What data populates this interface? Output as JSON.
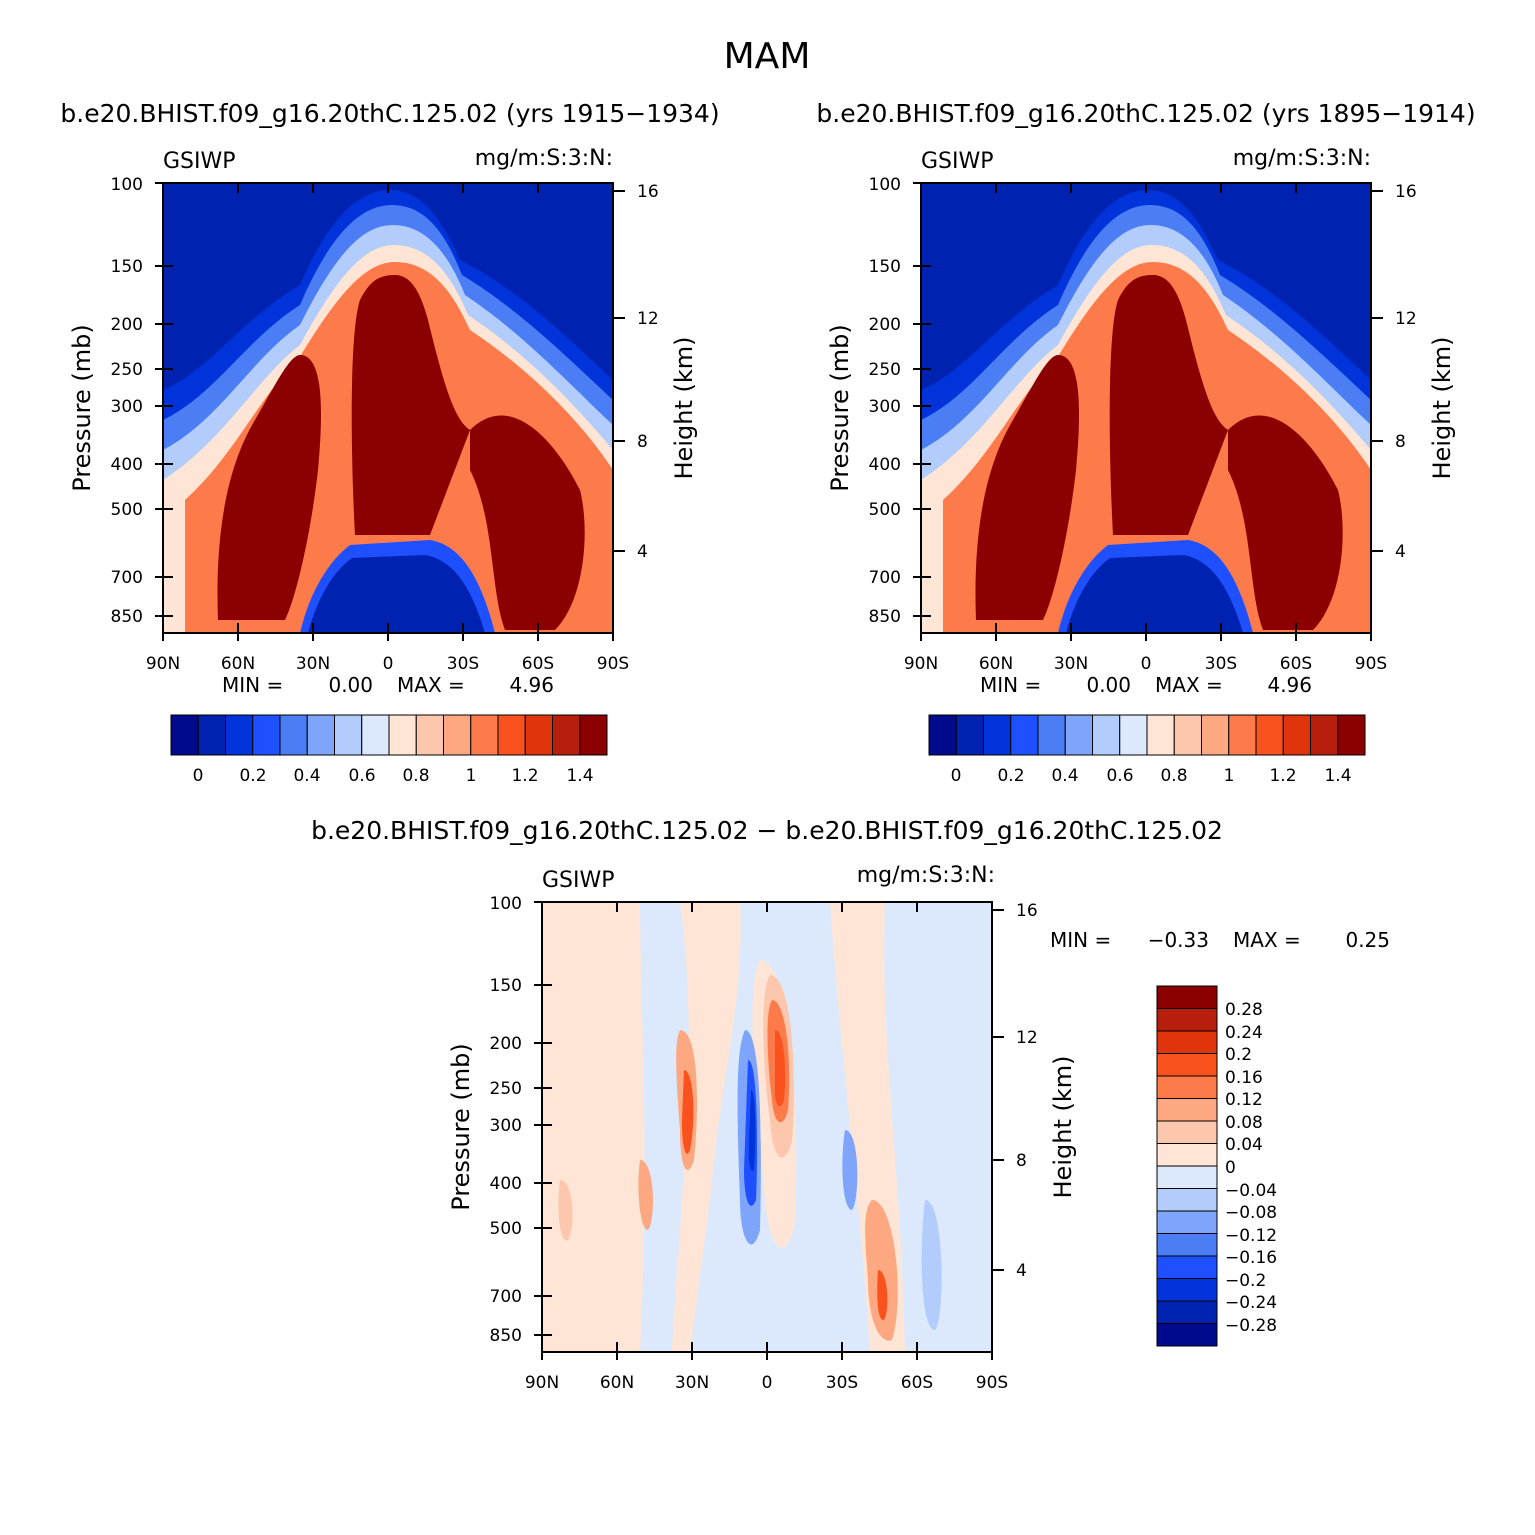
{
  "figure_title": "MAM",
  "chart_data": [
    {
      "type": "heatmap",
      "title": "b.e20.BHIST.f09_g16.20thC.125.02 (yrs 1915−1934)",
      "left_label": "GSIWP",
      "right_label": "mg/m:S:3:N:",
      "ylabel": "Pressure (mb)",
      "y2label": "Height (km)",
      "x_ticks": [
        "90N",
        "60N",
        "30N",
        "0",
        "30S",
        "60S",
        "90S"
      ],
      "x_range": [
        90,
        -90
      ],
      "y_ticks": [
        "100",
        "150",
        "200",
        "250",
        "300",
        "400",
        "500",
        "700",
        "850"
      ],
      "y_tick_values": [
        100,
        150,
        200,
        250,
        300,
        400,
        500,
        700,
        850
      ],
      "y_range": [
        100,
        1000
      ],
      "y2_ticks": [
        "16",
        "12",
        "8",
        "4"
      ],
      "y2_tick_values": [
        16,
        12,
        8,
        4
      ],
      "min_label": "MIN =",
      "min_value": "0.00",
      "max_label": "MAX =",
      "max_value": "4.96",
      "colorbar_labels": [
        "0",
        "0.2",
        "0.4",
        "0.6",
        "0.8",
        "1",
        "1.2",
        "1.4"
      ],
      "colorbar_levels": [
        0,
        0.1,
        0.2,
        0.3,
        0.4,
        0.5,
        0.6,
        0.7,
        0.8,
        0.9,
        1.0,
        1.1,
        1.2,
        1.3,
        1.4
      ]
    },
    {
      "type": "heatmap",
      "title": "b.e20.BHIST.f09_g16.20thC.125.02 (yrs 1895−1914)",
      "left_label": "GSIWP",
      "right_label": "mg/m:S:3:N:",
      "ylabel": "Pressure (mb)",
      "y2label": "Height (km)",
      "x_ticks": [
        "90N",
        "60N",
        "30N",
        "0",
        "30S",
        "60S",
        "90S"
      ],
      "x_range": [
        90,
        -90
      ],
      "y_ticks": [
        "100",
        "150",
        "200",
        "250",
        "300",
        "400",
        "500",
        "700",
        "850"
      ],
      "y_tick_values": [
        100,
        150,
        200,
        250,
        300,
        400,
        500,
        700,
        850
      ],
      "y_range": [
        100,
        1000
      ],
      "y2_ticks": [
        "16",
        "12",
        "8",
        "4"
      ],
      "y2_tick_values": [
        16,
        12,
        8,
        4
      ],
      "min_label": "MIN =",
      "min_value": "0.00",
      "max_label": "MAX =",
      "max_value": "4.96",
      "colorbar_labels": [
        "0",
        "0.2",
        "0.4",
        "0.6",
        "0.8",
        "1",
        "1.2",
        "1.4"
      ],
      "colorbar_levels": [
        0,
        0.1,
        0.2,
        0.3,
        0.4,
        0.5,
        0.6,
        0.7,
        0.8,
        0.9,
        1.0,
        1.1,
        1.2,
        1.3,
        1.4
      ]
    },
    {
      "type": "heatmap",
      "title": "b.e20.BHIST.f09_g16.20thC.125.02 − b.e20.BHIST.f09_g16.20thC.125.02",
      "left_label": "GSIWP",
      "right_label": "mg/m:S:3:N:",
      "ylabel": "Pressure (mb)",
      "y2label": "Height (km)",
      "x_ticks": [
        "90N",
        "60N",
        "30N",
        "0",
        "30S",
        "60S",
        "90S"
      ],
      "x_range": [
        90,
        -90
      ],
      "y_ticks": [
        "100",
        "150",
        "200",
        "250",
        "300",
        "400",
        "500",
        "700",
        "850"
      ],
      "y_tick_values": [
        100,
        150,
        200,
        250,
        300,
        400,
        500,
        700,
        850
      ],
      "y_range": [
        100,
        1000
      ],
      "y2_ticks": [
        "16",
        "12",
        "8",
        "4"
      ],
      "y2_tick_values": [
        16,
        12,
        8,
        4
      ],
      "min_label": "MIN =",
      "min_value": "−0.33",
      "max_label": "MAX =",
      "max_value": "0.25",
      "colorbar_labels": [
        "0.28",
        "0.24",
        "0.2",
        "0.16",
        "0.12",
        "0.08",
        "0.04",
        "0",
        "−0.04",
        "−0.08",
        "−0.12",
        "−0.16",
        "−0.2",
        "−0.24",
        "−0.28"
      ],
      "colorbar_levels": [
        0.28,
        0.24,
        0.2,
        0.16,
        0.12,
        0.08,
        0.04,
        0,
        -0.04,
        -0.08,
        -0.12,
        -0.16,
        -0.2,
        -0.24,
        -0.28
      ]
    }
  ],
  "colors": {
    "palette16": [
      "#000a8c",
      "#0022b0",
      "#0033d9",
      "#1e50ff",
      "#4b7df5",
      "#7fa5fa",
      "#b2ccfb",
      "#dce9fd",
      "#fee5d6",
      "#fcc7ac",
      "#fda880",
      "#fd7a4a",
      "#f9521e",
      "#e0340c",
      "#b71f0c",
      "#8b0000"
    ]
  }
}
